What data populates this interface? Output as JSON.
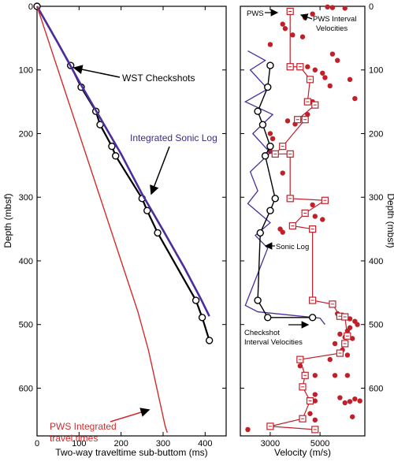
{
  "chart_data": [
    {
      "type": "line",
      "xlabel": "Two-way traveltime sub-buttom (ms)",
      "ylabel": "Depth (mbsf)",
      "xlim": [
        0,
        450
      ],
      "ylim": [
        0,
        675
      ],
      "y_reversed": true,
      "xticks": [
        0,
        100,
        200,
        300,
        400
      ],
      "yticks": [
        0,
        100,
        200,
        300,
        400,
        500,
        600
      ],
      "grid": false,
      "series": [
        {
          "name": "WST Checkshots",
          "color": "#000000",
          "marker": "circle-c",
          "points": [
            [
              0,
              0
            ],
            [
              80,
              93
            ],
            [
              105,
              127
            ],
            [
              140,
              165
            ],
            [
              150,
              186
            ],
            [
              178,
              220
            ],
            [
              187,
              235
            ],
            [
              250,
              302
            ],
            [
              262,
              321
            ],
            [
              287,
              356
            ],
            [
              378,
              462
            ],
            [
              393,
              489
            ],
            [
              410,
              525
            ]
          ]
        },
        {
          "name": "Integrated Sonic Log",
          "color": "#4b2d9c",
          "points": [
            [
              0,
              0
            ],
            [
              50,
              58
            ],
            [
              100,
              118
            ],
            [
              150,
              175
            ],
            [
              200,
              232
            ],
            [
              250,
              295
            ],
            [
              300,
              352
            ],
            [
              350,
              410
            ],
            [
              390,
              460
            ],
            [
              410,
              487
            ]
          ]
        },
        {
          "name": "PWS Integrated travel times",
          "color": "#d42a2a",
          "points": [
            [
              0,
              0
            ],
            [
              30,
              60
            ],
            [
              60,
              120
            ],
            [
              90,
              180
            ],
            [
              120,
              240
            ],
            [
              150,
              300
            ],
            [
              180,
              360
            ],
            [
              210,
              420
            ],
            [
              240,
              480
            ],
            [
              265,
              540
            ],
            [
              285,
              600
            ],
            [
              305,
              660
            ],
            [
              310,
              670
            ]
          ]
        }
      ],
      "annotations": [
        "WST Checkshots",
        "Integrated Sonic Log",
        "PWS Integrated",
        "travel times"
      ]
    },
    {
      "type": "scatter",
      "xlabel": "Velocity (m/s)",
      "ylabel": "Depth (mbsf)",
      "xlim": [
        1800,
        6800
      ],
      "ylim": [
        0,
        675
      ],
      "y_reversed": true,
      "xticks": [
        3000,
        5000
      ],
      "yticks": [
        0,
        100,
        200,
        300,
        400,
        500,
        600
      ],
      "grid": false,
      "series": [
        {
          "name": "PWS",
          "color": "#c0202a",
          "marker": "dot",
          "points": [
            [
              5300,
              1
            ],
            [
              5500,
              2
            ],
            [
              6000,
              3
            ],
            [
              4700,
              12
            ],
            [
              4400,
              18
            ],
            [
              3500,
              28
            ],
            [
              3600,
              35
            ],
            [
              3900,
              45
            ],
            [
              4300,
              48
            ],
            [
              3000,
              60
            ],
            [
              5500,
              75
            ],
            [
              5700,
              85
            ],
            [
              4500,
              95
            ],
            [
              4800,
              100
            ],
            [
              5100,
              105
            ],
            [
              5200,
              112
            ],
            [
              6200,
              115
            ],
            [
              5400,
              125
            ],
            [
              6400,
              145
            ],
            [
              4700,
              150
            ],
            [
              4500,
              170
            ],
            [
              3700,
              180
            ],
            [
              4000,
              185
            ],
            [
              3000,
              200
            ],
            [
              3100,
              208
            ],
            [
              3000,
              228
            ],
            [
              3500,
              262
            ],
            [
              4700,
              312
            ],
            [
              4800,
              330
            ],
            [
              5100,
              335
            ],
            [
              3400,
              350
            ],
            [
              3500,
              355
            ],
            [
              5700,
              483
            ],
            [
              6000,
              487
            ],
            [
              6200,
              491
            ],
            [
              6400,
              495
            ],
            [
              6500,
              500
            ],
            [
              6200,
              505
            ],
            [
              6100,
              510
            ],
            [
              5800,
              515
            ],
            [
              6000,
              520
            ],
            [
              6300,
              522
            ],
            [
              5600,
              530
            ],
            [
              5900,
              540
            ],
            [
              6100,
              548
            ],
            [
              5400,
              555
            ],
            [
              4200,
              565
            ],
            [
              4800,
              580
            ],
            [
              5600,
              580
            ],
            [
              6100,
              580
            ],
            [
              4800,
              610
            ],
            [
              4800,
              620
            ],
            [
              5800,
              615
            ],
            [
              6000,
              623
            ],
            [
              6200,
              621
            ],
            [
              6400,
              617
            ],
            [
              6600,
              620
            ],
            [
              4600,
              640
            ],
            [
              4800,
              650
            ],
            [
              6300,
              645
            ],
            [
              2100,
              665
            ]
          ]
        },
        {
          "name": "PWS Interval Velocities",
          "color": "#c0202a",
          "marker": "square-box",
          "points": [
            [
              3800,
              8
            ],
            [
              3800,
              95
            ],
            [
              4200,
              95
            ],
            [
              4600,
              115
            ],
            [
              4500,
              150
            ],
            [
              4800,
              155
            ],
            [
              4100,
              178
            ],
            [
              4400,
              178
            ],
            [
              3500,
              220
            ],
            [
              3200,
              232
            ],
            [
              3800,
              232
            ],
            [
              3800,
              302
            ],
            [
              5200,
              305
            ],
            [
              4400,
              325
            ],
            [
              3900,
              345
            ],
            [
              4700,
              350
            ],
            [
              4700,
              462
            ],
            [
              5500,
              468
            ],
            [
              5800,
              487
            ],
            [
              6000,
              488
            ],
            [
              6100,
              518
            ],
            [
              6000,
              530
            ],
            [
              5800,
              545
            ],
            [
              4200,
              555
            ],
            [
              4400,
              580
            ],
            [
              4300,
              598
            ],
            [
              4600,
              620
            ],
            [
              4300,
              648
            ],
            [
              3000,
              660
            ],
            [
              4800,
              665
            ]
          ]
        },
        {
          "name": "Sonic Log",
          "color": "#4b2d9c",
          "points": [
            [
              2100,
              70
            ],
            [
              2800,
              85
            ],
            [
              2200,
              100
            ],
            [
              2900,
              130
            ],
            [
              2000,
              150
            ],
            [
              3100,
              170
            ],
            [
              2300,
              200
            ],
            [
              3000,
              230
            ],
            [
              2200,
              260
            ],
            [
              2500,
              290
            ],
            [
              2100,
              310
            ],
            [
              3000,
              340
            ],
            [
              2400,
              360
            ],
            [
              2900,
              380
            ],
            [
              2600,
              410
            ],
            [
              2300,
              440
            ],
            [
              2000,
              470
            ],
            [
              2500,
              480
            ],
            [
              5000,
              490
            ],
            [
              5200,
              500
            ]
          ]
        },
        {
          "name": "Checkshot Interval Velocities",
          "color": "#000000",
          "marker": "circle-c",
          "points": [
            [
              3000,
              93
            ],
            [
              2900,
              127
            ],
            [
              2500,
              165
            ],
            [
              2700,
              186
            ],
            [
              3000,
              220
            ],
            [
              2800,
              235
            ],
            [
              3200,
              302
            ],
            [
              3000,
              321
            ],
            [
              2600,
              356
            ],
            [
              2500,
              462
            ],
            [
              2900,
              489
            ],
            [
              4700,
              489
            ]
          ]
        }
      ],
      "annotations": [
        "PWS",
        "PWS Interval",
        "Velocities",
        "Sonic Log",
        "Checkshot",
        "Interval Velocities"
      ]
    }
  ],
  "ui": {
    "left_xlabel": "Two-way traveltime sub-buttom (ms)",
    "left_ylabel": "Depth (mbsf)",
    "right_xlabel": "Velocity (m/s)",
    "right_ylabel": "Depth (mbsf)",
    "ann_wst": "WST Checkshots",
    "ann_sonic_int": "Integrated Sonic Log",
    "ann_pws_int_1": "PWS Integrated",
    "ann_pws_int_2": "travel times",
    "ann_pws": "PWS",
    "ann_pws_iv_1": "PWS Interval",
    "ann_pws_iv_2": "Velocities",
    "ann_sonic": "Sonic Log",
    "ann_cs_1": "Checkshot",
    "ann_cs_2": "Interval Velocities"
  }
}
